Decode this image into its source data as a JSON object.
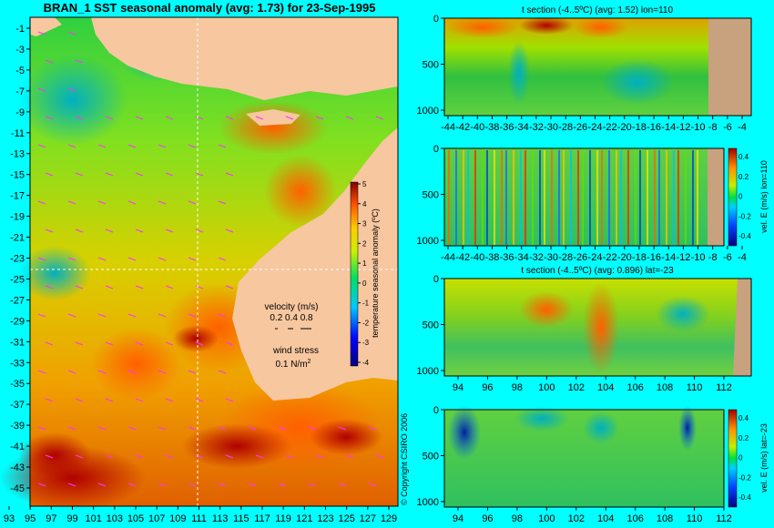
{
  "colors": {
    "background": "#00ffff",
    "land": "#f7c7a0",
    "land_section": "#c8a27e",
    "frame": "#000000",
    "wind": "#ff33ff",
    "gridline": "#ffffff"
  },
  "main_map": {
    "title": "BRAN_1  SST seasonal anomaly  (avg: 1.73)  for 23-Sep-1995",
    "lat_ticks": [
      "-1",
      "-3",
      "-5",
      "-7",
      "-9",
      "-11",
      "-13",
      "-15",
      "-17",
      "-19",
      "-21",
      "-23",
      "-25",
      "-27",
      "-29",
      "-31",
      "-33",
      "-35",
      "-37",
      "-39",
      "-41",
      "-43",
      "-45"
    ],
    "lon_ticks": [
      "93",
      "95",
      "97",
      "99",
      "101",
      "103",
      "105",
      "107",
      "109",
      "111",
      "113",
      "115",
      "117",
      "119",
      "121",
      "123",
      "125",
      "127",
      "129"
    ],
    "copyright": "© Copyright CSIRO 2006",
    "legend": {
      "velocity_title": "velocity (m/s)",
      "velocity_values": "0.2 0.4 0.8",
      "wind_title": "wind stress",
      "wind_value": "0.1 N/m",
      "wind_sup": "2"
    },
    "colorbar": {
      "label": "temperature seasonal anomaly (ºC)",
      "ticks": [
        "5",
        "4",
        "3",
        "2",
        "1",
        "0",
        "-1",
        "-2",
        "-3",
        "-4"
      ]
    }
  },
  "panels": [
    {
      "title": "t section (-4..5ºC) (avg: 1.52) lon=110",
      "y_ticks": [
        "0",
        "500",
        "1000"
      ],
      "x_ticks": [
        "-44",
        "-42",
        "-40",
        "-38",
        "-36",
        "-34",
        "-32",
        "-30",
        "-28",
        "-26",
        "-24",
        "-22",
        "-20",
        "-18",
        "-16",
        "-14",
        "-12",
        "-10",
        "-8",
        "-6",
        "-4"
      ]
    },
    {
      "title": "",
      "y_ticks": [
        "0",
        "500",
        "1000"
      ],
      "x_ticks": [
        "-44",
        "-42",
        "-40",
        "-38",
        "-36",
        "-34",
        "-32",
        "-30",
        "-28",
        "-26",
        "-24",
        "-22",
        "-20",
        "-18",
        "-16",
        "-14",
        "-12",
        "-10",
        "-8",
        "-6",
        "-4"
      ],
      "colorbar_label": "vel. E (m/s) lon=110",
      "colorbar_ticks": [
        "0.4",
        "0.2",
        "0",
        "-0.2",
        "-0.4"
      ]
    },
    {
      "title": "t section (-4..5ºC) (avg: 0.896) lat=-23",
      "y_ticks": [
        "0",
        "500",
        "1000"
      ],
      "x_ticks": [
        "94",
        "96",
        "98",
        "100",
        "102",
        "104",
        "106",
        "108",
        "110",
        "112"
      ]
    },
    {
      "title": "",
      "y_ticks": [
        "0",
        "500",
        "1000"
      ],
      "x_ticks": [
        "94",
        "96",
        "98",
        "100",
        "102",
        "104",
        "106",
        "108",
        "110",
        "112"
      ],
      "colorbar_label": "vel. E (m/s) lat=-23",
      "colorbar_ticks": [
        "0.4",
        "0.2",
        "0",
        "-0.2",
        "-0.4"
      ]
    }
  ],
  "chart_data": [
    {
      "type": "heatmap",
      "title": "BRAN_1  SST seasonal anomaly  (avg: 1.73)  for 23-Sep-1995",
      "xlim": [
        92,
        130
      ],
      "ylim": [
        -45,
        0
      ],
      "colorbar_range": [
        -4,
        5
      ],
      "section_lines": {
        "lon": 110,
        "lat": -23
      }
    },
    {
      "type": "heatmap",
      "title": "t section (-4..5ºC) (avg: 1.52) lon=110",
      "xlim": [
        -45,
        -3
      ],
      "ylim": [
        1050,
        0
      ],
      "colorbar_range": [
        -4,
        5
      ]
    },
    {
      "type": "heatmap",
      "xlim": [
        -45,
        -3
      ],
      "ylim": [
        1050,
        0
      ],
      "colorbar_range": [
        -0.4,
        0.4
      ]
    },
    {
      "type": "heatmap",
      "title": "t section (-4..5ºC) (avg: 0.896) lat=-23",
      "xlim": [
        93,
        114
      ],
      "ylim": [
        1050,
        0
      ],
      "colorbar_range": [
        -4,
        5
      ]
    },
    {
      "type": "heatmap",
      "xlim": [
        93,
        114
      ],
      "ylim": [
        1050,
        0
      ],
      "colorbar_range": [
        -0.4,
        0.4
      ]
    }
  ]
}
